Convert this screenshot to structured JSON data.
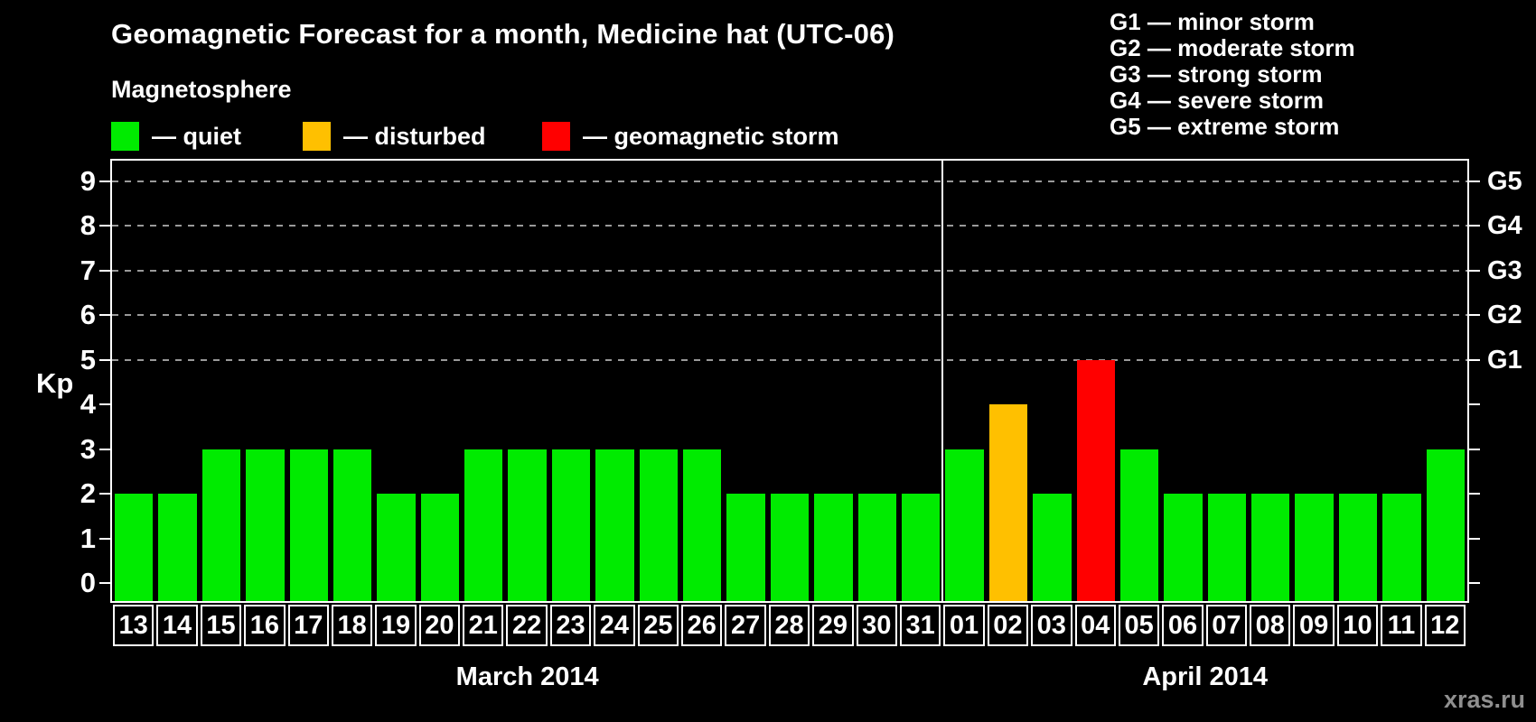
{
  "title": "Geomagnetic Forecast for a month, Medicine hat (UTC-06)",
  "subtitle": "Magnetosphere",
  "status_legend": [
    {
      "key": "quiet",
      "label": "— quiet",
      "color": "#00EB00"
    },
    {
      "key": "disturbed",
      "label": "— disturbed",
      "color": "#FFC000"
    },
    {
      "key": "storm",
      "label": "— geomagnetic storm",
      "color": "#FF0000"
    }
  ],
  "g_scale_legend": [
    {
      "label": "G1 — minor storm"
    },
    {
      "label": "G2 — moderate storm"
    },
    {
      "label": "G3 — strong storm"
    },
    {
      "label": "G4 — severe storm"
    },
    {
      "label": "G5 — extreme storm"
    }
  ],
  "watermark": "xras.ru",
  "chart_data": {
    "type": "bar",
    "title": "Geomagnetic Forecast for a month, Medicine hat (UTC-06)",
    "ylabel": "Kp",
    "ylim": [
      0,
      9
    ],
    "yticks": [
      0,
      1,
      2,
      3,
      4,
      5,
      6,
      7,
      8,
      9
    ],
    "gridlines_kp": [
      5,
      6,
      7,
      8,
      9
    ],
    "grid": "dashed horizontal at Kp 5-9",
    "right_axis": [
      {
        "kp": 5,
        "label": "G1"
      },
      {
        "kp": 6,
        "label": "G2"
      },
      {
        "kp": 7,
        "label": "G3"
      },
      {
        "kp": 8,
        "label": "G4"
      },
      {
        "kp": 9,
        "label": "G5"
      }
    ],
    "months": [
      {
        "label": "March 2014",
        "days": 19
      },
      {
        "label": "April 2014",
        "days": 12
      }
    ],
    "categories": [
      "13",
      "14",
      "15",
      "16",
      "17",
      "18",
      "19",
      "20",
      "21",
      "22",
      "23",
      "24",
      "25",
      "26",
      "27",
      "28",
      "29",
      "30",
      "31",
      "01",
      "02",
      "03",
      "04",
      "05",
      "06",
      "07",
      "08",
      "09",
      "10",
      "11",
      "12"
    ],
    "values": [
      2,
      2,
      3,
      3,
      3,
      3,
      2,
      2,
      3,
      3,
      3,
      3,
      3,
      3,
      2,
      2,
      2,
      2,
      2,
      3,
      4,
      2,
      5,
      3,
      2,
      2,
      2,
      2,
      2,
      2,
      3
    ],
    "statuses": [
      "quiet",
      "quiet",
      "quiet",
      "quiet",
      "quiet",
      "quiet",
      "quiet",
      "quiet",
      "quiet",
      "quiet",
      "quiet",
      "quiet",
      "quiet",
      "quiet",
      "quiet",
      "quiet",
      "quiet",
      "quiet",
      "quiet",
      "quiet",
      "disturbed",
      "quiet",
      "storm",
      "quiet",
      "quiet",
      "quiet",
      "quiet",
      "quiet",
      "quiet",
      "quiet",
      "quiet"
    ]
  }
}
